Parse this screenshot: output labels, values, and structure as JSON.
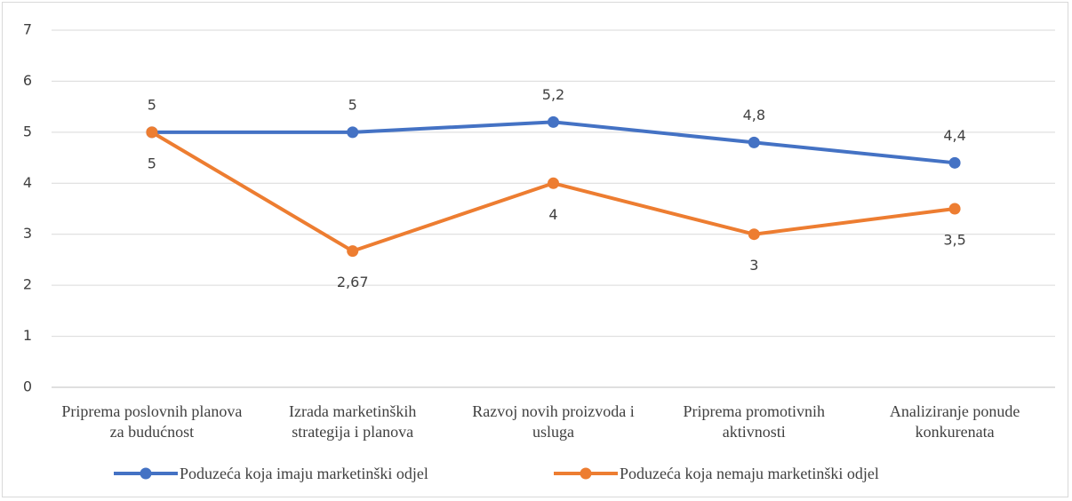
{
  "chart_data": {
    "type": "line",
    "categories": [
      "Priprema poslovnih planova za budućnost",
      "Izrada marketinških strategija i planova",
      "Razvoj novih proizvoda i usluga",
      "Priprema promotivnih aktivnosti",
      "Analiziranje ponude konkurenata"
    ],
    "series": [
      {
        "name": "Poduzeća koja imaju marketinški odjel",
        "color": "#4472c4",
        "values": [
          5,
          5,
          5.2,
          4.8,
          4.4
        ],
        "value_labels": [
          "5",
          "5",
          "5,2",
          "4,8",
          "4,4"
        ]
      },
      {
        "name": "Poduzeća koja nemaju marketinški odjel",
        "color": "#ed7d31",
        "values": [
          5,
          2.67,
          4,
          3,
          3.5
        ],
        "value_labels": [
          "5",
          "2,67",
          "4",
          "3",
          "3,5"
        ]
      }
    ],
    "ylim": [
      0,
      7
    ],
    "yticks": [
      0,
      1,
      2,
      3,
      4,
      5,
      6,
      7
    ],
    "grid": true,
    "legend": "bottom"
  }
}
